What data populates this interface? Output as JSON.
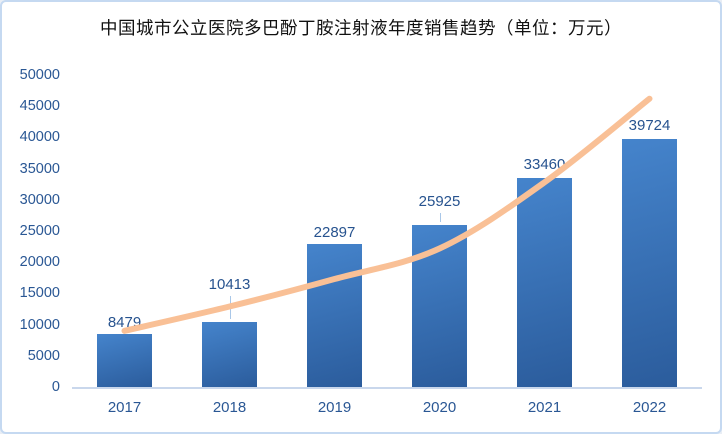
{
  "title": "中国城市公立医院多巴酚丁胺注射液年度销售趋势（单位：万元）",
  "chart_data": {
    "type": "bar",
    "title": "中国城市公立医院多巴酚丁胺注射液年度销售趋势（单位：万元）",
    "categories": [
      "2017",
      "2018",
      "2019",
      "2020",
      "2021",
      "2022"
    ],
    "values": [
      8479,
      10413,
      22897,
      25925,
      33460,
      39724
    ],
    "data_labels": [
      "8479",
      "10413",
      "22897",
      "25925",
      "33460",
      "39724"
    ],
    "label_raise": [
      0,
      26,
      0,
      12,
      2,
      2
    ],
    "label_leader": [
      false,
      true,
      false,
      true,
      false,
      false
    ],
    "trendline": {
      "type": "smooth-exponential",
      "values": [
        9000,
        12900,
        17300,
        22200,
        32800,
        46200
      ],
      "color": "#F9C096",
      "stroke_width": 6
    },
    "xlabel": "",
    "ylabel": "",
    "ylim": [
      0,
      50000
    ],
    "yticks": [
      0,
      5000,
      10000,
      15000,
      20000,
      25000,
      30000,
      35000,
      40000,
      45000,
      50000
    ],
    "ytick_labels": [
      "0",
      "5000",
      "10000",
      "15000",
      "20000",
      "25000",
      "30000",
      "35000",
      "40000",
      "45000",
      "50000"
    ],
    "grid": false,
    "legend": false,
    "colors": {
      "bar_top": "#4584CC",
      "bar_bottom": "#2B5C9C",
      "tick_text": "#2A5794",
      "value_text": "#27538F",
      "axis_line": "#C9D7EC",
      "leader_line": "#A9C7E8",
      "frame_border": "#C5D9F1",
      "background": "#FFFFFF",
      "title_text": "#111111"
    }
  }
}
